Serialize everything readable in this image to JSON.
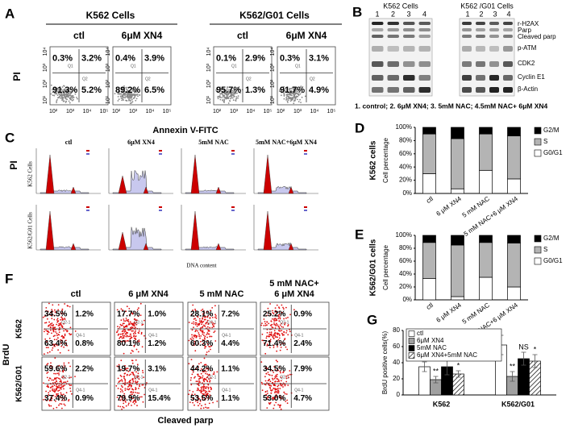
{
  "panels": {
    "A": {
      "label": "A",
      "y_label": "PI",
      "x_ticks": [
        "10²",
        "10³",
        "10⁴",
        "10⁵"
      ],
      "y_ticks": [
        "10¹",
        "10²",
        "10³",
        "10⁴"
      ],
      "gates": [
        "Q1",
        "Q2"
      ],
      "groups": [
        {
          "title": "K562 Cells",
          "plots": [
            {
              "title": "ctl",
              "quadrants": [
                "0.3%",
                "3.2%",
                "91.3%",
                "5.2%"
              ]
            },
            {
              "title": "6μM XN4",
              "quadrants": [
                "0.4%",
                "3.9%",
                "89.2%",
                "6.5%"
              ]
            }
          ]
        },
        {
          "title": "K562/G01 Cells",
          "plots": [
            {
              "title": "ctl",
              "quadrants": [
                "0.1%",
                "2.9%",
                "95.7%",
                "1.3%"
              ]
            },
            {
              "title": "6μM XN4",
              "quadrants": [
                "0.3%",
                "3.1%",
                "91.7%",
                "4.9%"
              ]
            }
          ]
        }
      ]
    },
    "B": {
      "label": "B",
      "blots": [
        "K562 Cells",
        "K562 /G01 Cells"
      ],
      "lanes": [
        "1",
        "2",
        "3",
        "4"
      ],
      "proteins": [
        "r-H2AX",
        "Parp",
        "Cleaved parp",
        "p-ATM",
        "CDK2",
        "Cyclin E1",
        "β-Actin"
      ],
      "caption": "1. control; 2. 6μM XN4; 3. 5mM NAC; 4.5mM NAC+ 6μM XN4"
    },
    "C": {
      "label": "C",
      "title": "Annexin V-FITC",
      "columns": [
        "ctl",
        "6μM XN4",
        "5mM NAC",
        "5mM NAC+6μM XN4"
      ],
      "rows": [
        "K562 Cells",
        "K562/G01 Cells"
      ],
      "y_label": "PI",
      "x_label": "DNA content"
    },
    "F": {
      "label": "F",
      "y_label": "BrdU",
      "x_label": "Cleaved parp",
      "gates": [
        "Q2-1",
        "Q4-1"
      ],
      "columns": [
        [
          "ctl"
        ],
        [
          "6 μM XN4"
        ],
        [
          "5 mM NAC"
        ],
        [
          "5 mM NAC+",
          "6 μM XN4"
        ]
      ],
      "rows": [
        {
          "name": "K562",
          "plots": [
            [
              "34.5%",
              "1.2%",
              "63.4%",
              "0.8%"
            ],
            [
              "17.7%",
              "1.0%",
              "80.1%",
              "1.2%"
            ],
            [
              "28.1%",
              "7.2%",
              "60.3%",
              "4.4%"
            ],
            [
              "25.2%",
              "0.9%",
              "71.4%",
              "2.4%"
            ]
          ]
        },
        {
          "name": "K562/G01",
          "plots": [
            [
              "59.6%",
              "2.2%",
              "37.4%",
              "0.9%"
            ],
            [
              "19.7%",
              "3.1%",
              "79.9%",
              "15.4%"
            ],
            [
              "44.2%",
              "1.1%",
              "53.5%",
              "1.1%"
            ],
            [
              "34.5%",
              "7.9%",
              "53.0%",
              "4.7%"
            ]
          ]
        }
      ]
    }
  },
  "chart_data": [
    {
      "type": "stacked_bar",
      "label": "D",
      "group_label": "K562 cells",
      "y_label": "Cell percentage",
      "categories": [
        "ctl",
        "6 μM XN4",
        "5 mM NAC",
        "5 mM NAC+6 μM XN4"
      ],
      "series": [
        {
          "name": "G0/G1",
          "color": "#ffffff",
          "values": [
            30,
            7,
            35,
            22
          ]
        },
        {
          "name": "S",
          "color": "#b4b4b4",
          "values": [
            60,
            76,
            55,
            65
          ]
        },
        {
          "name": "G2/M",
          "color": "#000000",
          "values": [
            10,
            17,
            10,
            13
          ]
        }
      ],
      "ylim": [
        0,
        100
      ],
      "yticks": [
        {
          "value": 0,
          "label": "0%"
        },
        {
          "value": 20,
          "label": "20%"
        },
        {
          "value": 40,
          "label": "40%"
        },
        {
          "value": 60,
          "label": "60%"
        },
        {
          "value": 80,
          "label": "80%"
        },
        {
          "value": 100,
          "label": "100%"
        }
      ]
    },
    {
      "type": "stacked_bar",
      "label": "E",
      "group_label": "K562/G01 cells",
      "y_label": "Cell percentage",
      "categories": [
        "ctl",
        "6 μM XN4",
        "5 mM NAC",
        "5 mM NAC+6 μM XN4"
      ],
      "series": [
        {
          "name": "G0/G1",
          "color": "#ffffff",
          "values": [
            33,
            5,
            35,
            20
          ]
        },
        {
          "name": "S",
          "color": "#b4b4b4",
          "values": [
            56,
            80,
            54,
            68
          ]
        },
        {
          "name": "G2/M",
          "color": "#000000",
          "values": [
            11,
            15,
            11,
            12
          ]
        }
      ],
      "ylim": [
        0,
        100
      ],
      "yticks": [
        {
          "value": 0,
          "label": "0%"
        },
        {
          "value": 20,
          "label": "20%"
        },
        {
          "value": 40,
          "label": "40%"
        },
        {
          "value": 60,
          "label": "60%"
        },
        {
          "value": 80,
          "label": "80%"
        },
        {
          "value": 100,
          "label": "100%"
        }
      ]
    },
    {
      "type": "bar",
      "label": "G",
      "y_label": "BrdU positive cells(%)",
      "categories": [
        "K562",
        "K562/G01"
      ],
      "series": [
        {
          "name": "ctl",
          "color": "#ffffff",
          "values": [
            35,
            62
          ],
          "errors": [
            6,
            12
          ]
        },
        {
          "name": "6μM XN4",
          "color": "#a0a0a0",
          "values": [
            19,
            23
          ],
          "errors": [
            4,
            6
          ],
          "significance": [
            "**",
            "**"
          ]
        },
        {
          "name": "5mM NAC",
          "color": "#000000",
          "values": [
            35,
            45
          ],
          "errors": [
            10,
            8
          ],
          "significance": [
            "NS",
            "NS"
          ]
        },
        {
          "name": "6μM XN4+5mM NAC",
          "color": "#ffffff",
          "pattern": "hatch",
          "values": [
            26,
            42
          ],
          "errors": [
            4,
            8
          ],
          "significance": [
            "*",
            "*"
          ]
        }
      ],
      "ylim": [
        0,
        80
      ],
      "yticks": [
        0,
        20,
        40,
        60,
        80
      ]
    }
  ]
}
